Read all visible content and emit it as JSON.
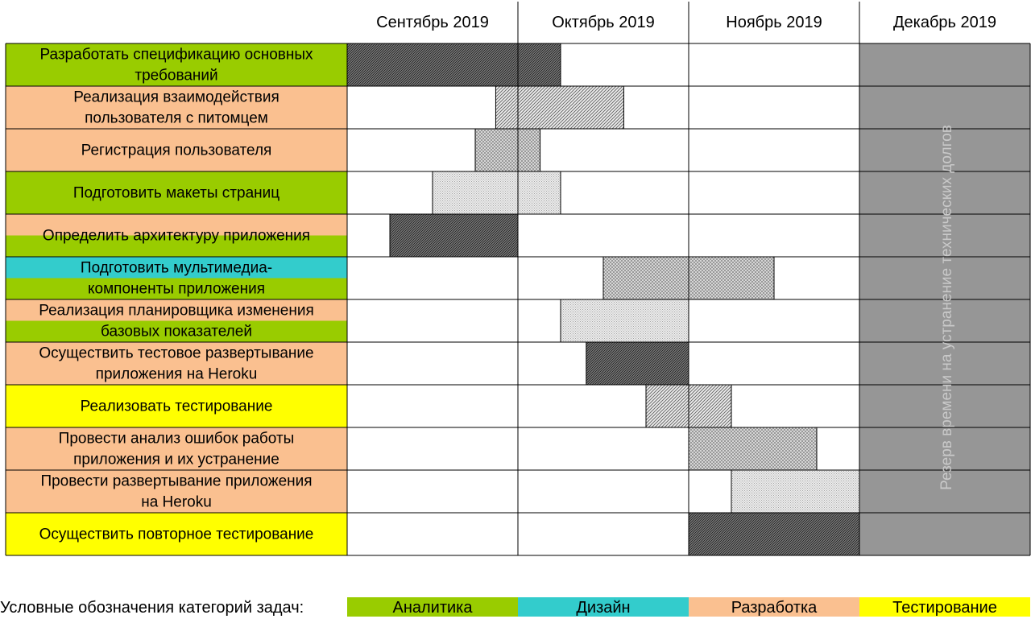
{
  "chart_data": {
    "type": "gantt",
    "months": [
      "Сентябрь 2019",
      "Октябрь 2019",
      "Ноябрь 2019",
      "Декабрь 2019"
    ],
    "tasks": [
      {
        "lines": [
          "Разработать спецификацию основных",
          "требований"
        ],
        "categories": [
          "analytics"
        ],
        "start": 0.0,
        "end": 1.25,
        "pattern": "dense"
      },
      {
        "lines": [
          "Реализация взаимодействия",
          "пользователя с питомцем"
        ],
        "categories": [
          "development"
        ],
        "start": 0.87,
        "end": 1.62,
        "pattern": "diag"
      },
      {
        "lines": [
          "Регистрация пользователя"
        ],
        "categories": [
          "development"
        ],
        "start": 0.75,
        "end": 1.13,
        "pattern": "cross"
      },
      {
        "lines": [
          "Подготовить макеты страниц"
        ],
        "categories": [
          "analytics"
        ],
        "start": 0.5,
        "end": 1.25,
        "pattern": "light"
      },
      {
        "lines": [
          "Определить архитектуру приложения"
        ],
        "categories": [
          "development",
          "analytics"
        ],
        "start": 0.25,
        "end": 1.0,
        "pattern": "dense"
      },
      {
        "lines": [
          "Подготовить мультимедиа-",
          "компоненты приложения"
        ],
        "categories": [
          "design",
          "analytics"
        ],
        "start": 1.5,
        "end": 2.5,
        "pattern": "cross"
      },
      {
        "lines": [
          "Реализация планировщика изменения",
          "базовых показателей"
        ],
        "categories": [
          "development",
          "analytics"
        ],
        "start": 1.25,
        "end": 2.0,
        "pattern": "light"
      },
      {
        "lines": [
          "Осуществить тестовое развертывание",
          "приложения на Heroku"
        ],
        "categories": [
          "development"
        ],
        "start": 1.4,
        "end": 2.0,
        "pattern": "dense"
      },
      {
        "lines": [
          "Реализовать тестирование"
        ],
        "categories": [
          "testing"
        ],
        "start": 1.75,
        "end": 2.25,
        "pattern": "diag"
      },
      {
        "lines": [
          "Провести анализ ошибок работы",
          "приложения и их устранение"
        ],
        "categories": [
          "development"
        ],
        "start": 2.0,
        "end": 2.75,
        "pattern": "cross"
      },
      {
        "lines": [
          "Провести развертывание приложения",
          "на Heroku"
        ],
        "categories": [
          "development"
        ],
        "start": 2.25,
        "end": 3.0,
        "pattern": "light"
      },
      {
        "lines": [
          "Осуществить повторное тестирование"
        ],
        "categories": [
          "testing"
        ],
        "start": 2.0,
        "end": 3.0,
        "pattern": "dense"
      }
    ],
    "reserve": {
      "month_index": 3,
      "text": "Резерв времени на устранение технических долгов"
    },
    "legend": {
      "title": "Условные обозначения категорий задач:",
      "items": [
        {
          "key": "analytics",
          "label": "Аналитика"
        },
        {
          "key": "design",
          "label": "Дизайн"
        },
        {
          "key": "development",
          "label": "Разработка"
        },
        {
          "key": "testing",
          "label": "Тестирование"
        }
      ]
    }
  },
  "colors": {
    "analytics": "#99cc00",
    "design": "#33cccc",
    "development": "#fac090",
    "testing": "#ffff00",
    "reserve": "#969696",
    "grid": "#000000"
  }
}
